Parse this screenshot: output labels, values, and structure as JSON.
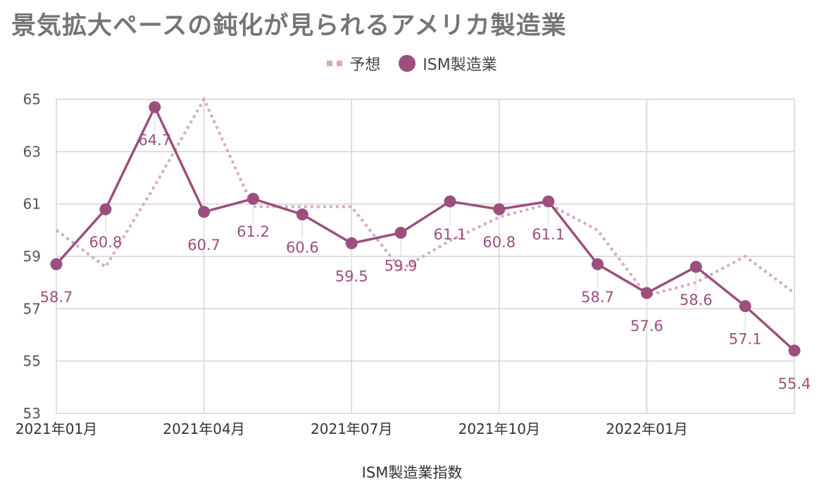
{
  "chart_data": {
    "type": "line",
    "title": "景気拡大ペースの鈍化が見られるアメリカ製造業",
    "xlabel": "ISM製造業指数",
    "ylabel": "",
    "ylim": [
      53,
      65
    ],
    "yticks": [
      "53",
      "55",
      "57",
      "59",
      "61",
      "63",
      "65"
    ],
    "x": [
      "2021年01月",
      "2021年02月",
      "2021年03月",
      "2021年04月",
      "2021年05月",
      "2021年06月",
      "2021年07月",
      "2021年08月",
      "2021年09月",
      "2021年10月",
      "2021年11月",
      "2021年12月",
      "2022年01月",
      "2022年02月",
      "2022年03月",
      "2022年04月"
    ],
    "xtick_labels": [
      "2021年01月",
      "",
      "",
      "2021年04月",
      "",
      "",
      "2021年07月",
      "",
      "",
      "2021年10月",
      "",
      "",
      "2022年01月",
      "",
      "",
      ""
    ],
    "grid": true,
    "legend_position": "top-center",
    "series": [
      {
        "name": "予想",
        "style": "dotted",
        "color": "#d7a8c6",
        "values": [
          60.0,
          58.6,
          61.7,
          65.0,
          60.9,
          60.9,
          60.9,
          58.5,
          59.6,
          60.5,
          61.0,
          60.0,
          57.5,
          58.0,
          59.0,
          57.6
        ]
      },
      {
        "name": "ISM製造業",
        "style": "solid-markers",
        "color": "#9c4f7c",
        "values": [
          58.7,
          60.8,
          64.7,
          60.7,
          61.2,
          60.6,
          59.5,
          59.9,
          61.1,
          60.8,
          61.1,
          58.7,
          57.6,
          58.6,
          57.1,
          55.4
        ],
        "labels": [
          "58.7",
          "60.8",
          "64.7",
          "60.7",
          "61.2",
          "60.6",
          "59.5",
          "59.9",
          "61.1",
          "60.8",
          "61.1",
          "58.7",
          "57.6",
          "58.6",
          "57.1",
          "55.4"
        ]
      }
    ]
  }
}
